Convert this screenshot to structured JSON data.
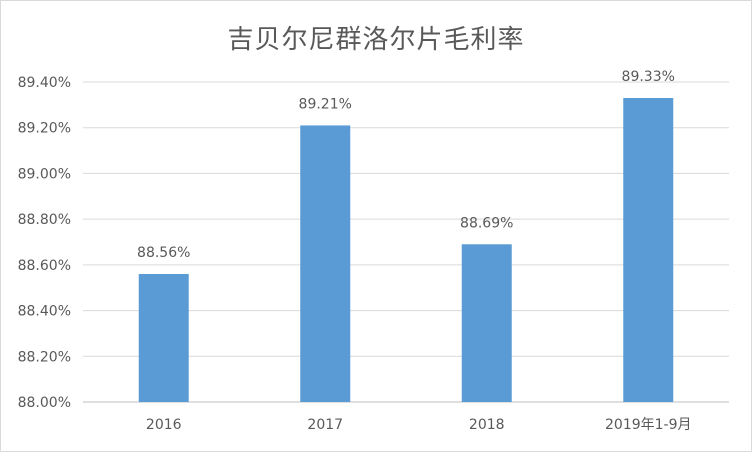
{
  "chart_data": {
    "type": "bar",
    "title": "吉贝尔尼群洛尔片毛利率",
    "categories": [
      "2016",
      "2017",
      "2018",
      "2019年1-9月"
    ],
    "values": [
      88.56,
      89.21,
      88.69,
      89.33
    ],
    "data_labels": [
      "88.56%",
      "89.21%",
      "88.69%",
      "89.33%"
    ],
    "y_ticks": [
      "88.00%",
      "88.20%",
      "88.40%",
      "88.60%",
      "88.80%",
      "89.00%",
      "89.20%",
      "89.40%"
    ],
    "ylim": [
      88.0,
      89.4
    ],
    "grid": true,
    "bar_color": "#5b9bd5"
  }
}
